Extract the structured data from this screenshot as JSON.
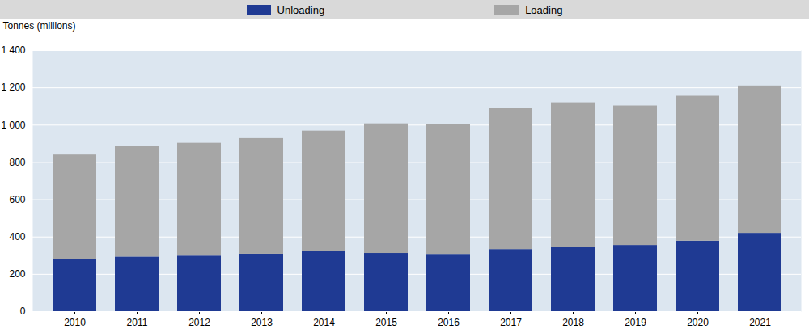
{
  "chart_data": {
    "type": "bar",
    "stacked": true,
    "y_label": "Tonnes (millions)",
    "categories": [
      "2010",
      "2011",
      "2012",
      "2013",
      "2014",
      "2015",
      "2016",
      "2017",
      "2018",
      "2019",
      "2020",
      "2021"
    ],
    "series": [
      {
        "name": "Unloading",
        "color": "#1f3a93",
        "values": [
          278,
          293,
          298,
          308,
          325,
          312,
          307,
          333,
          343,
          355,
          378,
          420
        ]
      },
      {
        "name": "Loading",
        "color": "#a6a6a6",
        "values": [
          562,
          594,
          605,
          620,
          643,
          695,
          696,
          755,
          777,
          748,
          777,
          790
        ]
      }
    ],
    "ylim": [
      0,
      1400
    ],
    "yticks": [
      0,
      200,
      400,
      600,
      800,
      {
        "value": 1000,
        "label": "1 000"
      },
      {
        "value": 1200,
        "label": "1 200"
      },
      {
        "value": 1400,
        "label": "1 400"
      }
    ],
    "grid": true,
    "legend": "top"
  }
}
